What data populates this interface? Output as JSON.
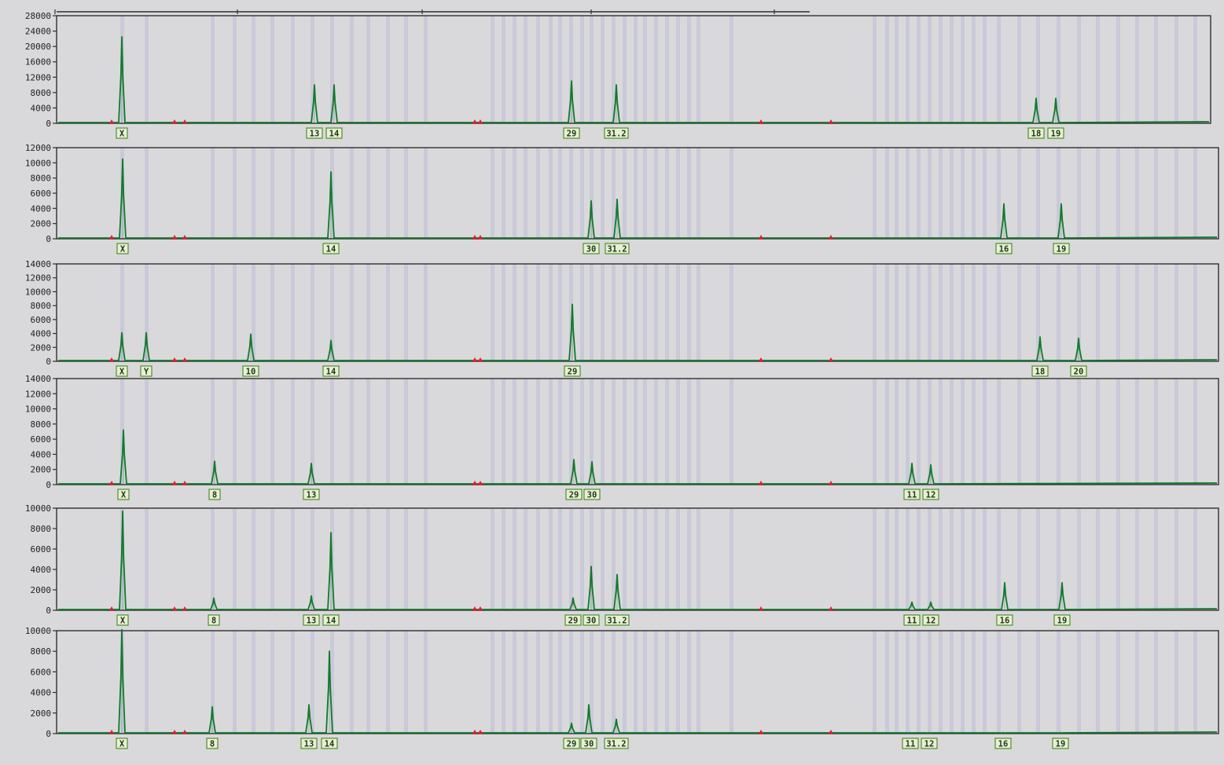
{
  "colors": {
    "background": "#d9d9db",
    "trace": "#0f7a2a",
    "frame": "#2f2f2f",
    "bin_stripe": "#b8b6d8",
    "label_border": "#4f8f2a",
    "label_fill": "#e8efd4",
    "marker": "#e0203a"
  },
  "axis": {
    "top_ticks": [
      "",
      "",
      "",
      "",
      ""
    ]
  },
  "chart_data": {
    "type": "line",
    "xlabel": "",
    "ylabel": "",
    "grid": false,
    "legend": "none",
    "panels": [
      {
        "row": 1,
        "ylim": [
          0,
          28000
        ],
        "yticks": [
          "28000",
          "24000",
          "20000",
          "16000",
          "12000",
          "8000",
          "4000",
          "0"
        ],
        "peaks": [
          {
            "label": "X",
            "height": 22500
          },
          {
            "label": "13",
            "height": 10000
          },
          {
            "label": "14",
            "height": 10000
          },
          {
            "label": "29",
            "height": 11000
          },
          {
            "label": "31.2",
            "height": 10000
          },
          {
            "label": "18",
            "height": 6500
          },
          {
            "label": "19",
            "height": 6500
          }
        ]
      },
      {
        "row": 2,
        "ylim": [
          0,
          12000
        ],
        "yticks": [
          "12000",
          "10000",
          "8000",
          "6000",
          "4000",
          "2000",
          "0"
        ],
        "peaks": [
          {
            "label": "X",
            "height": 10500
          },
          {
            "label": "14",
            "height": 8800
          },
          {
            "label": "30",
            "height": 5000
          },
          {
            "label": "31.2",
            "height": 5200
          },
          {
            "label": "16",
            "height": 4600
          },
          {
            "label": "19",
            "height": 4600
          }
        ]
      },
      {
        "row": 3,
        "ylim": [
          0,
          14000
        ],
        "yticks": [
          "14000",
          "12000",
          "10000",
          "8000",
          "6000",
          "4000",
          "2000",
          "0"
        ],
        "peaks": [
          {
            "label": "X",
            "height": 4100
          },
          {
            "label": "Y",
            "height": 4100
          },
          {
            "label": "10",
            "height": 3900
          },
          {
            "label": "14",
            "height": 3000
          },
          {
            "label": "29",
            "height": 8200
          },
          {
            "label": "18",
            "height": 3500
          },
          {
            "label": "20",
            "height": 3300
          }
        ]
      },
      {
        "row": 4,
        "ylim": [
          0,
          14000
        ],
        "yticks": [
          "14000",
          "12000",
          "10000",
          "8000",
          "6000",
          "4000",
          "2000",
          "0"
        ],
        "peaks": [
          {
            "label": "X",
            "height": 7200
          },
          {
            "label": "8",
            "height": 3100
          },
          {
            "label": "13",
            "height": 2800
          },
          {
            "label": "29",
            "height": 3300
          },
          {
            "label": "30",
            "height": 3000
          },
          {
            "label": "11",
            "height": 2800
          },
          {
            "label": "12",
            "height": 2600
          }
        ]
      },
      {
        "row": 5,
        "ylim": [
          0,
          10000
        ],
        "yticks": [
          "10000",
          "8000",
          "6000",
          "4000",
          "2000",
          "0"
        ],
        "peaks": [
          {
            "label": "X",
            "height": 9700
          },
          {
            "label": "8",
            "height": 1200
          },
          {
            "label": "13",
            "height": 1400
          },
          {
            "label": "14",
            "height": 7600
          },
          {
            "label": "29",
            "height": 1200
          },
          {
            "label": "30",
            "height": 4300
          },
          {
            "label": "31.2",
            "height": 3500
          },
          {
            "label": "11",
            "height": 800
          },
          {
            "label": "12",
            "height": 800
          },
          {
            "label": "16",
            "height": 2700
          },
          {
            "label": "19",
            "height": 2700
          }
        ]
      },
      {
        "row": 6,
        "ylim": [
          0,
          10000
        ],
        "yticks": [
          "10000",
          "8000",
          "6000",
          "4000",
          "2000",
          "0"
        ],
        "peaks": [
          {
            "label": "X",
            "height": 10100
          },
          {
            "label": "8",
            "height": 2600
          },
          {
            "label": "13",
            "height": 2800
          },
          {
            "label": "14",
            "height": 8000
          },
          {
            "label": "29",
            "height": 1000
          },
          {
            "label": "30",
            "height": 2800
          },
          {
            "label": "31.2",
            "height": 1400
          },
          {
            "label": "11",
            "height": 100
          },
          {
            "label": "12",
            "height": 100
          },
          {
            "label": "16",
            "height": 100
          },
          {
            "label": "19",
            "height": 100
          }
        ]
      }
    ]
  }
}
